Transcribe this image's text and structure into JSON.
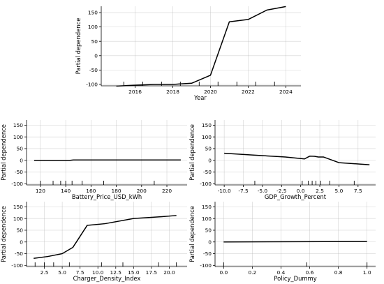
{
  "chart_data": [
    {
      "id": "year",
      "type": "line",
      "xlabel": "Year",
      "ylabel": "Partial dependence",
      "xlim": [
        2014.2,
        2024.8
      ],
      "ylim": [
        -105,
        172
      ],
      "xticks": [
        2016,
        2018,
        2020,
        2022,
        2024
      ],
      "yticks": [
        -100,
        -50,
        0,
        50,
        100,
        150
      ],
      "grid": true,
      "x": [
        2015,
        2016,
        2017,
        2018,
        2019,
        2020,
        2021,
        2022,
        2023,
        2024
      ],
      "y": [
        -106,
        -103,
        -100,
        -100,
        -96,
        -68,
        118,
        126,
        159,
        171
      ],
      "rug": [
        2015.4,
        2016.4,
        2017.4,
        2018.4,
        2019.4,
        2020.4,
        2021.4,
        2022.4,
        2023.4
      ]
    },
    {
      "id": "battery",
      "type": "line",
      "xlabel": "Battery_Price_USD_kWh",
      "ylabel": "Partial dependence",
      "xlim": [
        109,
        236
      ],
      "ylim": [
        -105,
        172
      ],
      "xticks": [
        120,
        140,
        160,
        180,
        200,
        220
      ],
      "yticks": [
        -100,
        -50,
        0,
        50,
        100,
        150
      ],
      "grid": true,
      "x": [
        115,
        122,
        130,
        140,
        143,
        146,
        160,
        180,
        200,
        220,
        231
      ],
      "y": [
        0,
        0,
        -0.5,
        -0.5,
        -0.5,
        1.5,
        1.5,
        1.5,
        1.5,
        1.5,
        1.5
      ],
      "rug": [
        120,
        130,
        136,
        140,
        145,
        153,
        170,
        210
      ]
    },
    {
      "id": "gdp",
      "type": "line",
      "xlabel": "GDP_Growth_Percent",
      "ylabel": "Partial dependence",
      "xlim": [
        -11.2,
        9.8
      ],
      "ylim": [
        -105,
        172
      ],
      "xticks": [
        -10.0,
        -7.5,
        -5.0,
        -2.5,
        0.0,
        2.5,
        5.0,
        7.5
      ],
      "yticks": [
        -100,
        -50,
        0,
        50,
        100,
        150
      ],
      "grid": true,
      "x": [
        -10,
        -6,
        -2,
        0.5,
        1.2,
        1.8,
        2.3,
        3,
        5,
        9
      ],
      "y": [
        30,
        22,
        14,
        6,
        18,
        17,
        14,
        14,
        -10,
        -19
      ],
      "rug": [
        -6,
        0.2,
        1,
        1.5,
        2,
        2.6,
        3.8,
        7
      ]
    },
    {
      "id": "charger",
      "type": "line",
      "xlabel": "Charger_Density_Index",
      "ylabel": "Partial dependence",
      "xlim": [
        0,
        22.5
      ],
      "ylim": [
        -105,
        172
      ],
      "xticks": [
        2.5,
        5.0,
        7.5,
        10.0,
        12.5,
        15.0,
        17.5,
        20.0
      ],
      "yticks": [
        -100,
        -50,
        0,
        50,
        100,
        150
      ],
      "grid": true,
      "x": [
        1,
        3,
        5,
        6.5,
        8.5,
        11,
        15,
        19,
        21
      ],
      "y": [
        -70,
        -62,
        -50,
        -23,
        71,
        78,
        100,
        108,
        113
      ],
      "rug": [
        1.2,
        2.5,
        3.8,
        6,
        10.5,
        13.5,
        18.5,
        21
      ]
    },
    {
      "id": "policy",
      "type": "line",
      "xlabel": "Policy_Dummy",
      "ylabel": "Partial dependence",
      "xlim": [
        -0.06,
        1.06
      ],
      "ylim": [
        -105,
        172
      ],
      "xticks": [
        0.0,
        0.2,
        0.4,
        0.6,
        0.8,
        1.0
      ],
      "yticks": [
        -100,
        -50,
        0,
        50,
        100,
        150
      ],
      "grid": true,
      "x": [
        0,
        1
      ],
      "y": [
        0,
        2
      ],
      "rug": [
        0,
        0.58,
        1
      ]
    }
  ]
}
